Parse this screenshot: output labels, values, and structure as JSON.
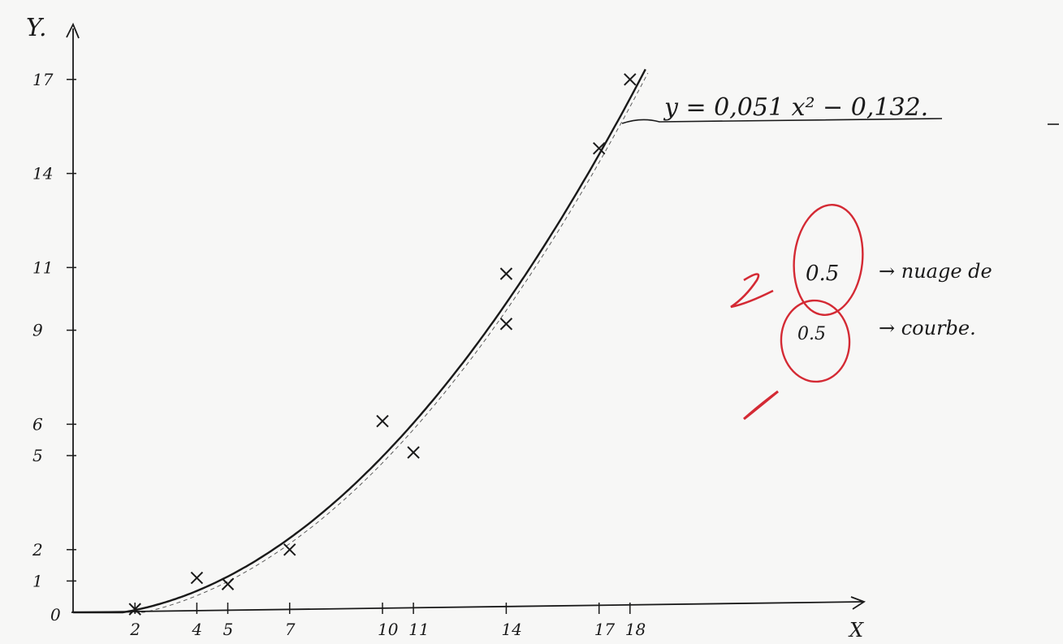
{
  "chart_data": {
    "type": "scatter",
    "title": "",
    "xlabel": "X",
    "ylabel": "Y.",
    "origin_label": "0",
    "x_ticks": [
      "2",
      "4",
      "5",
      "7",
      "10",
      "11",
      "14",
      "17",
      "18"
    ],
    "y_ticks": [
      "1",
      "2",
      "5",
      "6",
      "9",
      "11",
      "14",
      "17"
    ],
    "xlim": [
      0,
      24
    ],
    "ylim": [
      0,
      18
    ],
    "grid": false,
    "series": [
      {
        "marker": "x",
        "x": [
          2,
          4,
          5,
          7,
          10,
          11,
          14,
          14,
          17,
          18
        ],
        "y": [
          0.1,
          1.1,
          0.9,
          2.0,
          6.1,
          5.1,
          10.8,
          9.2,
          14.8,
          17.0
        ]
      }
    ],
    "fit_curve": {
      "equation": "y = 0,051 x² − 0,132.",
      "a": 0.051,
      "b": -0.132,
      "color": "#1a1a1a"
    },
    "annotations": [
      {
        "text": "0.5",
        "note": "→ nuage de",
        "color": "#d42a34"
      },
      {
        "text": "0.5",
        "note": "→ courbe.",
        "color": "#d42a34"
      }
    ],
    "colors": {
      "ink": "#1a1a1a",
      "correction": "#d42a34",
      "paper": "#f7f7f6"
    }
  }
}
